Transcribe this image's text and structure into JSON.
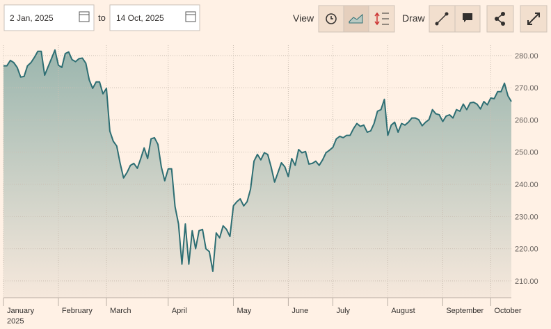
{
  "toolbar": {
    "date_from": "2 Jan, 2025",
    "to": "to",
    "date_to": "14 Oct, 2025",
    "view": "View",
    "draw": "Draw"
  },
  "chart_data": {
    "type": "area",
    "color": "#2d6e73",
    "grid": true,
    "year_label": "2025",
    "categories": [
      "January",
      null,
      null,
      null,
      null,
      null,
      null,
      null,
      null,
      null,
      null,
      null,
      null,
      null,
      null,
      null,
      "February",
      null,
      null,
      null,
      null,
      null,
      null,
      null,
      null,
      null,
      null,
      null,
      null,
      null,
      "March",
      null,
      null,
      null,
      null,
      null,
      null,
      null,
      null,
      null,
      null,
      null,
      null,
      null,
      null,
      null,
      null,
      null,
      "April",
      null,
      null,
      null,
      null,
      null,
      null,
      null,
      null,
      null,
      null,
      null,
      null,
      null,
      null,
      null,
      null,
      null,
      null,
      "May",
      null,
      null,
      null,
      null,
      null,
      null,
      null,
      null,
      null,
      null,
      null,
      null,
      null,
      null,
      null,
      "June",
      null,
      null,
      null,
      null,
      null,
      null,
      null,
      null,
      null,
      null,
      null,
      null,
      "July",
      null,
      null,
      null,
      null,
      null,
      null,
      null,
      null,
      null,
      null,
      null,
      null,
      null,
      null,
      null,
      "August",
      null,
      null,
      null,
      null,
      null,
      null,
      null,
      null,
      null,
      null,
      null,
      null,
      null,
      null,
      null,
      "September",
      null,
      null,
      null,
      null,
      null,
      null,
      null,
      null,
      null,
      null,
      null,
      null,
      null,
      "October",
      null,
      null,
      null,
      null,
      null,
      null
    ],
    "values": [
      276.8,
      276.8,
      278.5,
      277.8,
      276.3,
      273.3,
      273.5,
      276.8,
      277.8,
      279.4,
      281.3,
      281.3,
      273.9,
      276.5,
      279.1,
      281.7,
      277,
      276.3,
      280.6,
      281.1,
      278.7,
      278.1,
      279,
      279.2,
      277.6,
      272.4,
      269.8,
      271.8,
      271.8,
      268.1,
      269.8,
      256.5,
      253.4,
      251.9,
      246.5,
      242,
      243.7,
      245.9,
      246.5,
      245,
      248,
      251.3,
      248,
      254.1,
      254.5,
      252.4,
      245.4,
      241.1,
      244.8,
      244.8,
      233.1,
      227.7,
      215.2,
      227.7,
      215.2,
      225.6,
      220,
      225.6,
      226,
      220,
      219.1,
      213,
      224.9,
      223.4,
      227.1,
      226,
      223.8,
      233.3,
      234.6,
      235.5,
      233.3,
      234.6,
      238.5,
      247.2,
      249.3,
      247.6,
      249.8,
      249.3,
      245.4,
      240.7,
      243.7,
      246.7,
      245.4,
      242.4,
      248,
      245.9,
      250.8,
      249.8,
      250.2,
      246.3,
      246.5,
      247.2,
      245.9,
      247.6,
      249.8,
      250.6,
      251.5,
      254.1,
      254.9,
      254.5,
      255.2,
      255.2,
      257.3,
      258.9,
      258,
      258.4,
      256.2,
      256.6,
      258.9,
      262.7,
      263.2,
      266.4,
      255.2,
      258.4,
      259.3,
      256.2,
      258.9,
      258.4,
      259.3,
      260.6,
      260.6,
      260.1,
      258.2,
      259.3,
      260.1,
      263.2,
      261.9,
      261.6,
      259.5,
      261.2,
      261.6,
      260.6,
      263.2,
      262.7,
      264.9,
      263.2,
      265.3,
      265.5,
      264.9,
      263.4,
      265.7,
      264.7,
      266.8,
      266.6,
      268.8,
      268.8,
      271.4,
      267.5,
      265.7
    ],
    "ylim": [
      204.8,
      283.2
    ],
    "yticks": [
      {
        "value": 210,
        "label": "210.00"
      },
      {
        "value": 220,
        "label": "220.00"
      },
      {
        "value": 230,
        "label": "230.00"
      },
      {
        "value": 240,
        "label": "240.00"
      },
      {
        "value": 250,
        "label": "250.00"
      },
      {
        "value": 260,
        "label": "260.00"
      },
      {
        "value": 270,
        "label": "270.00"
      },
      {
        "value": 280,
        "label": "280.00"
      }
    ]
  }
}
